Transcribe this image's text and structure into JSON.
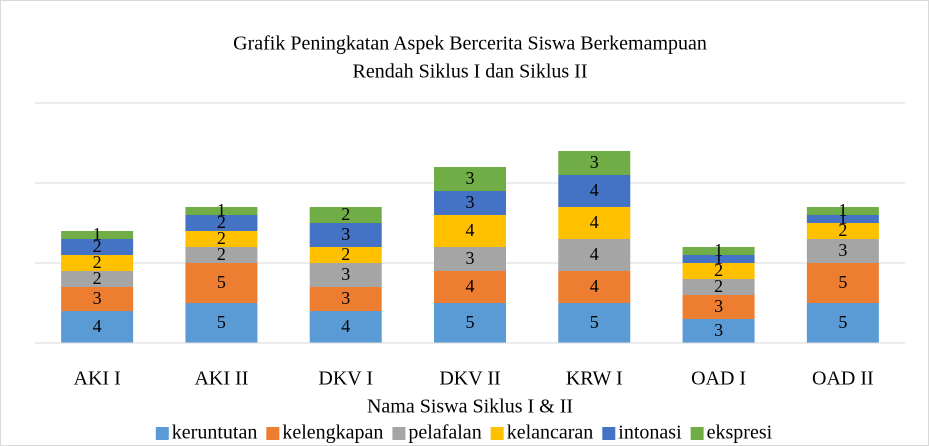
{
  "chart_data": {
    "type": "stacked_bar",
    "title": [
      "Grafik Peningkatan  Aspek Bercerita Siswa Berkemampuan",
      "Rendah Siklus I dan Siklus II"
    ],
    "x_label": "Nama Siswa Siklus I & II",
    "categories": [
      "AKI I",
      "AKI II",
      "DKV I",
      "DKV II",
      "KRW I",
      "OAD I",
      "OAD II"
    ],
    "series": [
      {
        "name": "keruntutan",
        "color": "#5b9bd5",
        "values": [
          4,
          5,
          4,
          5,
          5,
          3,
          5
        ]
      },
      {
        "name": "kelengkapan",
        "color": "#ed7d31",
        "values": [
          3,
          5,
          3,
          4,
          4,
          3,
          5
        ]
      },
      {
        "name": "pelafalan",
        "color": "#a5a5a5",
        "values": [
          2,
          2,
          3,
          3,
          4,
          2,
          3
        ]
      },
      {
        "name": "kelancaran",
        "color": "#ffc000",
        "values": [
          2,
          2,
          2,
          4,
          4,
          2,
          2
        ]
      },
      {
        "name": "intonasi",
        "color": "#4472c4",
        "values": [
          2,
          2,
          3,
          3,
          4,
          1,
          1
        ]
      },
      {
        "name": "ekspresi",
        "color": "#70ad47",
        "values": [
          1,
          1,
          2,
          3,
          3,
          1,
          1
        ]
      }
    ],
    "ylim": [
      0,
      30
    ],
    "yticks": [
      0,
      10,
      20,
      30
    ],
    "grid": true,
    "legend": "bottom"
  }
}
